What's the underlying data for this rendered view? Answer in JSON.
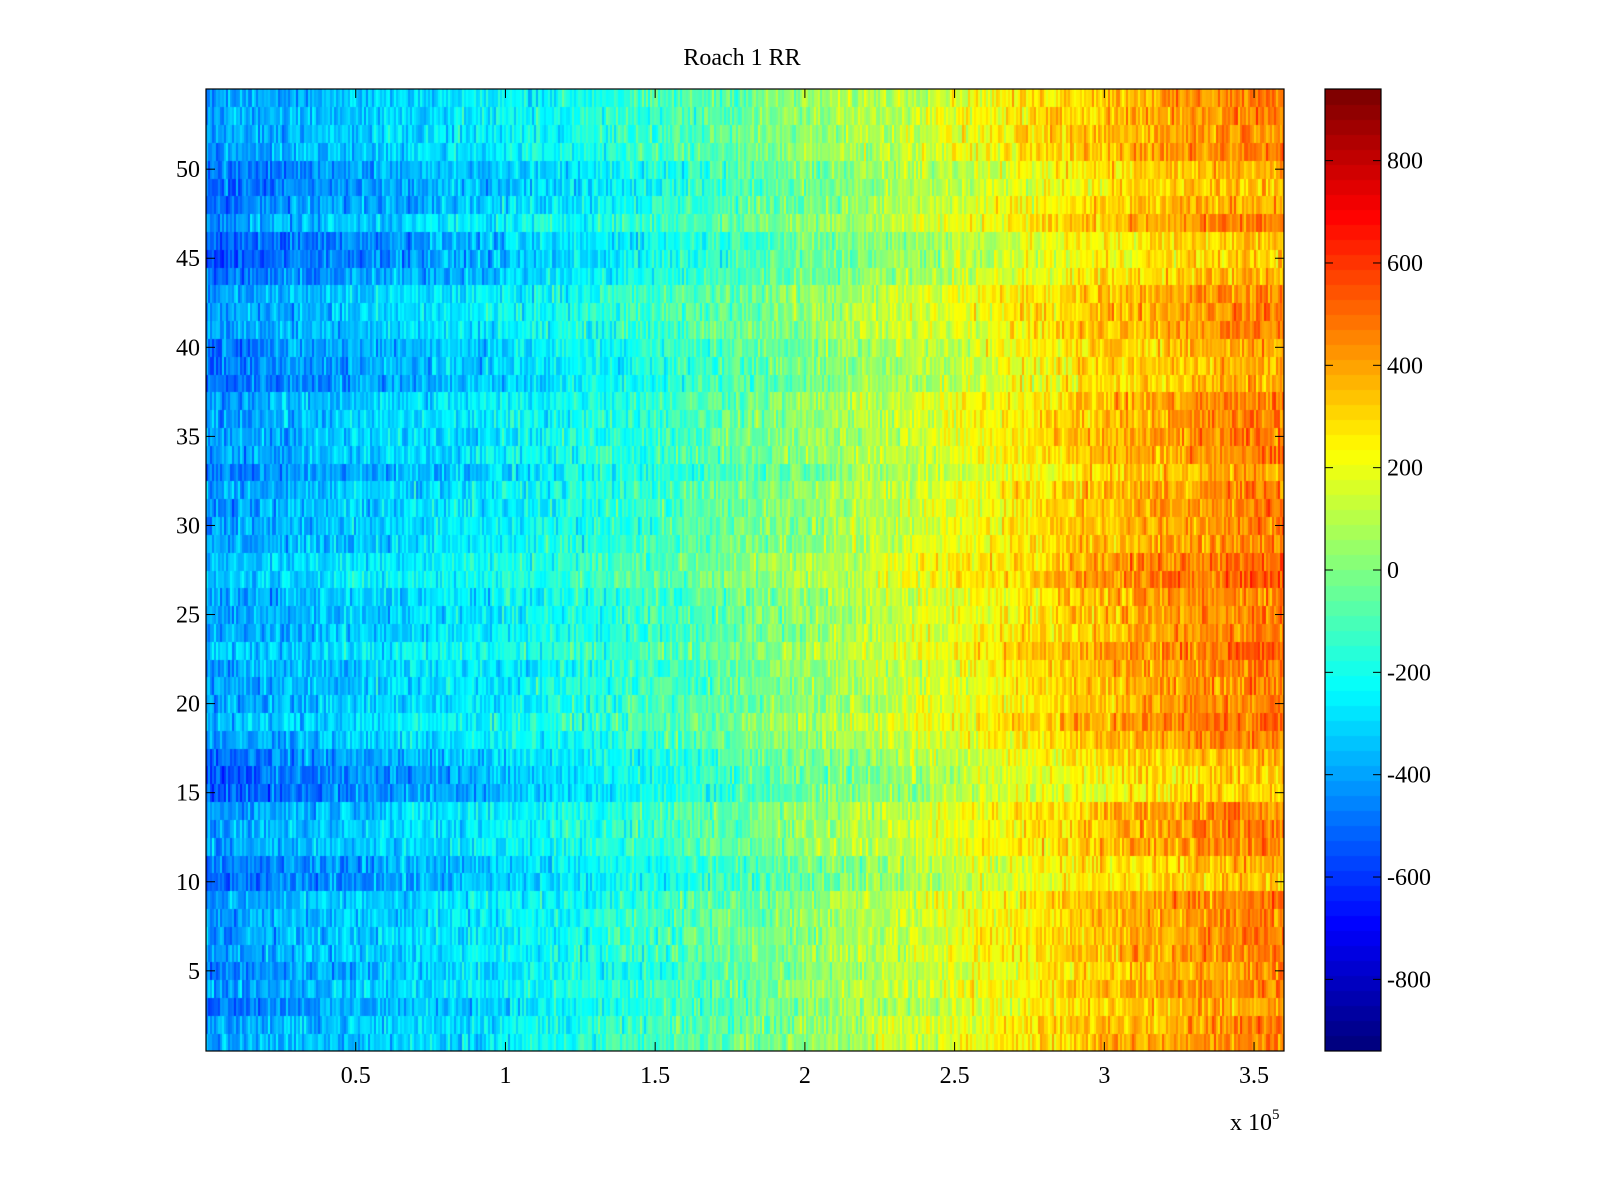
{
  "chart_data": {
    "type": "heatmap",
    "title": "Roach 1 RR",
    "xlabel": "",
    "ylabel": "",
    "x_exponent_label": "x 10",
    "x_exponent_power": "5",
    "xlim": [
      0,
      3.6
    ],
    "ylim": [
      0.5,
      54.5
    ],
    "x_ticks": [
      {
        "value": 0.5,
        "label": "0.5"
      },
      {
        "value": 1,
        "label": "1"
      },
      {
        "value": 1.5,
        "label": "1.5"
      },
      {
        "value": 2,
        "label": "2"
      },
      {
        "value": 2.5,
        "label": "2.5"
      },
      {
        "value": 3,
        "label": "3"
      },
      {
        "value": 3.5,
        "label": "3.5"
      }
    ],
    "y_ticks": [
      {
        "value": 5,
        "label": "5"
      },
      {
        "value": 10,
        "label": "10"
      },
      {
        "value": 15,
        "label": "15"
      },
      {
        "value": 20,
        "label": "20"
      },
      {
        "value": 25,
        "label": "25"
      },
      {
        "value": 30,
        "label": "30"
      },
      {
        "value": 35,
        "label": "35"
      },
      {
        "value": 40,
        "label": "40"
      },
      {
        "value": 45,
        "label": "45"
      },
      {
        "value": 50,
        "label": "50"
      }
    ],
    "rows": 54,
    "colorbar": {
      "colormap": "jet",
      "range": [
        -940,
        940
      ],
      "ticks": [
        {
          "value": 800,
          "label": "800"
        },
        {
          "value": 600,
          "label": "600"
        },
        {
          "value": 400,
          "label": "400"
        },
        {
          "value": 200,
          "label": "200"
        },
        {
          "value": 0,
          "label": "0"
        },
        {
          "value": -200,
          "label": "-200"
        },
        {
          "value": -400,
          "label": "-400"
        },
        {
          "value": -600,
          "label": "-600"
        },
        {
          "value": -800,
          "label": "-800"
        }
      ]
    },
    "approx_trend": {
      "x": [
        0,
        0.5,
        1.0,
        1.5,
        2.0,
        2.5,
        3.0,
        3.5
      ],
      "typical_value": [
        -420,
        -330,
        -250,
        -130,
        30,
        190,
        360,
        470
      ],
      "description": "Values increase from roughly -400 at left to roughly +500 at right across all rows"
    },
    "row_offsets": [
      {
        "row": 3,
        "offset": -60
      },
      {
        "row": 5,
        "offset": -40
      },
      {
        "row": 10,
        "offset": -110
      },
      {
        "row": 11,
        "offset": -90
      },
      {
        "row": 15,
        "offset": -130
      },
      {
        "row": 16,
        "offset": -130
      },
      {
        "row": 17,
        "offset": -80
      },
      {
        "row": 19,
        "offset": 50
      },
      {
        "row": 23,
        "offset": 60
      },
      {
        "row": 27,
        "offset": 80
      },
      {
        "row": 28,
        "offset": 70
      },
      {
        "row": 33,
        "offset": -70
      },
      {
        "row": 38,
        "offset": -90
      },
      {
        "row": 39,
        "offset": -80
      },
      {
        "row": 40,
        "offset": -60
      },
      {
        "row": 44,
        "offset": -100
      },
      {
        "row": 45,
        "offset": -140
      },
      {
        "row": 46,
        "offset": -130
      },
      {
        "row": 48,
        "offset": -70
      },
      {
        "row": 49,
        "offset": -110
      },
      {
        "row": 50,
        "offset": -90
      }
    ]
  }
}
